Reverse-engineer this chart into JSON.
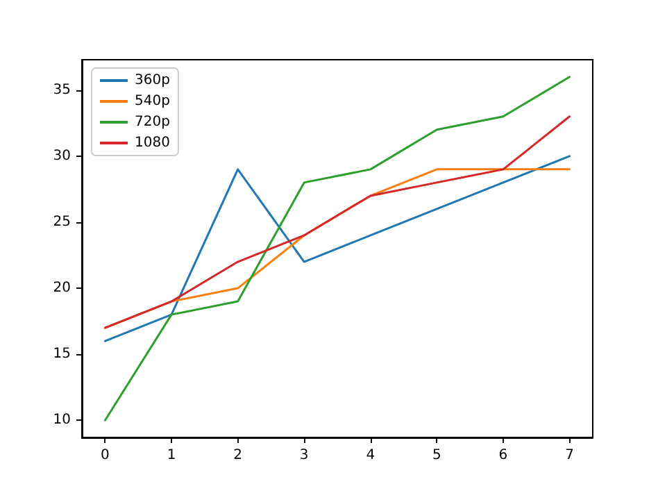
{
  "chart_data": {
    "type": "line",
    "x": [
      0,
      1,
      2,
      3,
      4,
      5,
      6,
      7
    ],
    "series": [
      {
        "name": "360p",
        "color": "#1f77b4",
        "values": [
          16,
          18,
          29,
          22,
          24,
          26,
          28,
          30
        ]
      },
      {
        "name": "540p",
        "color": "#ff7f0e",
        "values": [
          17,
          19,
          20,
          24,
          27,
          29,
          29,
          29
        ]
      },
      {
        "name": "720p",
        "color": "#2ca02c",
        "values": [
          10,
          18,
          19,
          28,
          29,
          32,
          33,
          36
        ]
      },
      {
        "name": "1080",
        "color": "#d62728",
        "values": [
          17,
          19,
          22,
          24,
          27,
          28,
          29,
          33
        ]
      }
    ],
    "xlim": [
      -0.35,
      7.35
    ],
    "xticks": [
      0,
      1,
      2,
      3,
      4,
      5,
      6,
      7
    ],
    "ylim": [
      8.7,
      37.3
    ],
    "yticks": [
      10,
      15,
      20,
      25,
      30,
      35
    ],
    "grid": false,
    "legend": "top left",
    "marker": "none",
    "line_style": "solid"
  }
}
